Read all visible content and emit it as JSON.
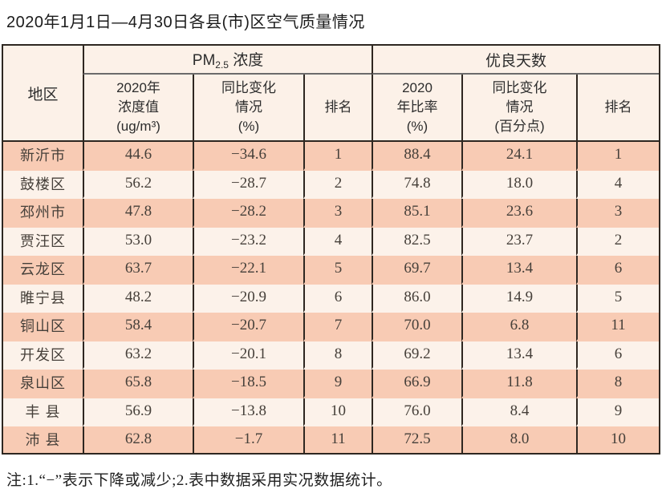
{
  "title": "2020年1月1日—4月30日各县(市)区空气质量情况",
  "table": {
    "region_header": "地区",
    "pm_group": {
      "prefix": "PM",
      "sub": "2.5",
      "suffix": " 浓度"
    },
    "good_group": "优良天数",
    "subheaders": [
      "2020年\n浓度值\n(ug/m³)",
      "同比变化\n情况\n(%)",
      "排名",
      "2020\n年比率\n(%)",
      "同比变化\n情况\n(百分点)",
      "排名"
    ],
    "rows": [
      {
        "region": "新沂市",
        "pm_value": "44.6",
        "pm_change": "−34.6",
        "pm_rank": "1",
        "good_ratio": "88.4",
        "good_change": "24.1",
        "good_rank": "1"
      },
      {
        "region": "鼓楼区",
        "pm_value": "56.2",
        "pm_change": "−28.7",
        "pm_rank": "2",
        "good_ratio": "74.8",
        "good_change": "18.0",
        "good_rank": "4"
      },
      {
        "region": "邳州市",
        "pm_value": "47.8",
        "pm_change": "−28.2",
        "pm_rank": "3",
        "good_ratio": "85.1",
        "good_change": "23.6",
        "good_rank": "3"
      },
      {
        "region": "贾汪区",
        "pm_value": "53.0",
        "pm_change": "−23.2",
        "pm_rank": "4",
        "good_ratio": "82.5",
        "good_change": "23.7",
        "good_rank": "2"
      },
      {
        "region": "云龙区",
        "pm_value": "63.7",
        "pm_change": "−22.1",
        "pm_rank": "5",
        "good_ratio": "69.7",
        "good_change": "13.4",
        "good_rank": "6"
      },
      {
        "region": "睢宁县",
        "pm_value": "48.2",
        "pm_change": "−20.9",
        "pm_rank": "6",
        "good_ratio": "86.0",
        "good_change": "14.9",
        "good_rank": "5"
      },
      {
        "region": "铜山区",
        "pm_value": "58.4",
        "pm_change": "−20.7",
        "pm_rank": "7",
        "good_ratio": "70.0",
        "good_change": "6.8",
        "good_rank": "11"
      },
      {
        "region": "开发区",
        "pm_value": "63.2",
        "pm_change": "−20.1",
        "pm_rank": "8",
        "good_ratio": "69.2",
        "good_change": "13.4",
        "good_rank": "6"
      },
      {
        "region": "泉山区",
        "pm_value": "65.8",
        "pm_change": "−18.5",
        "pm_rank": "9",
        "good_ratio": "66.9",
        "good_change": "11.8",
        "good_rank": "8"
      },
      {
        "region": "丰 县",
        "pm_value": "56.9",
        "pm_change": "−13.8",
        "pm_rank": "10",
        "good_ratio": "76.0",
        "good_change": "8.4",
        "good_rank": "9"
      },
      {
        "region": "沛 县",
        "pm_value": "62.8",
        "pm_change": "−1.7",
        "pm_rank": "11",
        "good_ratio": "72.5",
        "good_change": "8.0",
        "good_rank": "10"
      }
    ]
  },
  "note": "注:1.“−”表示下降或减少;2.表中数据采用实况数据统计。",
  "colors": {
    "row_salmon": "#f8cbb4",
    "row_light": "#fcf2ea",
    "header_bg": "#fcf1e8",
    "border_dark": "#2e2721",
    "group_underline": "#6b6b6b"
  }
}
